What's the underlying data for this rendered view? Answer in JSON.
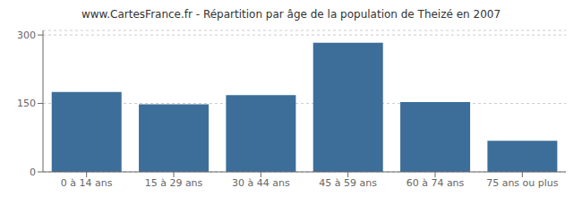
{
  "chart_data": {
    "type": "bar",
    "title": "www.CartesFrance.fr - Répartition par âge de la population de Theizé en 2007",
    "categories": [
      "0 à 14 ans",
      "15 à 29 ans",
      "30 à 44 ans",
      "45 à 59 ans",
      "60 à 74 ans",
      "75 ans ou plus"
    ],
    "values": [
      175,
      148,
      168,
      283,
      153,
      68
    ],
    "color": "#3d6e99",
    "ylim": [
      0,
      310
    ],
    "yticks": [
      0,
      150,
      300
    ],
    "grid": true
  }
}
